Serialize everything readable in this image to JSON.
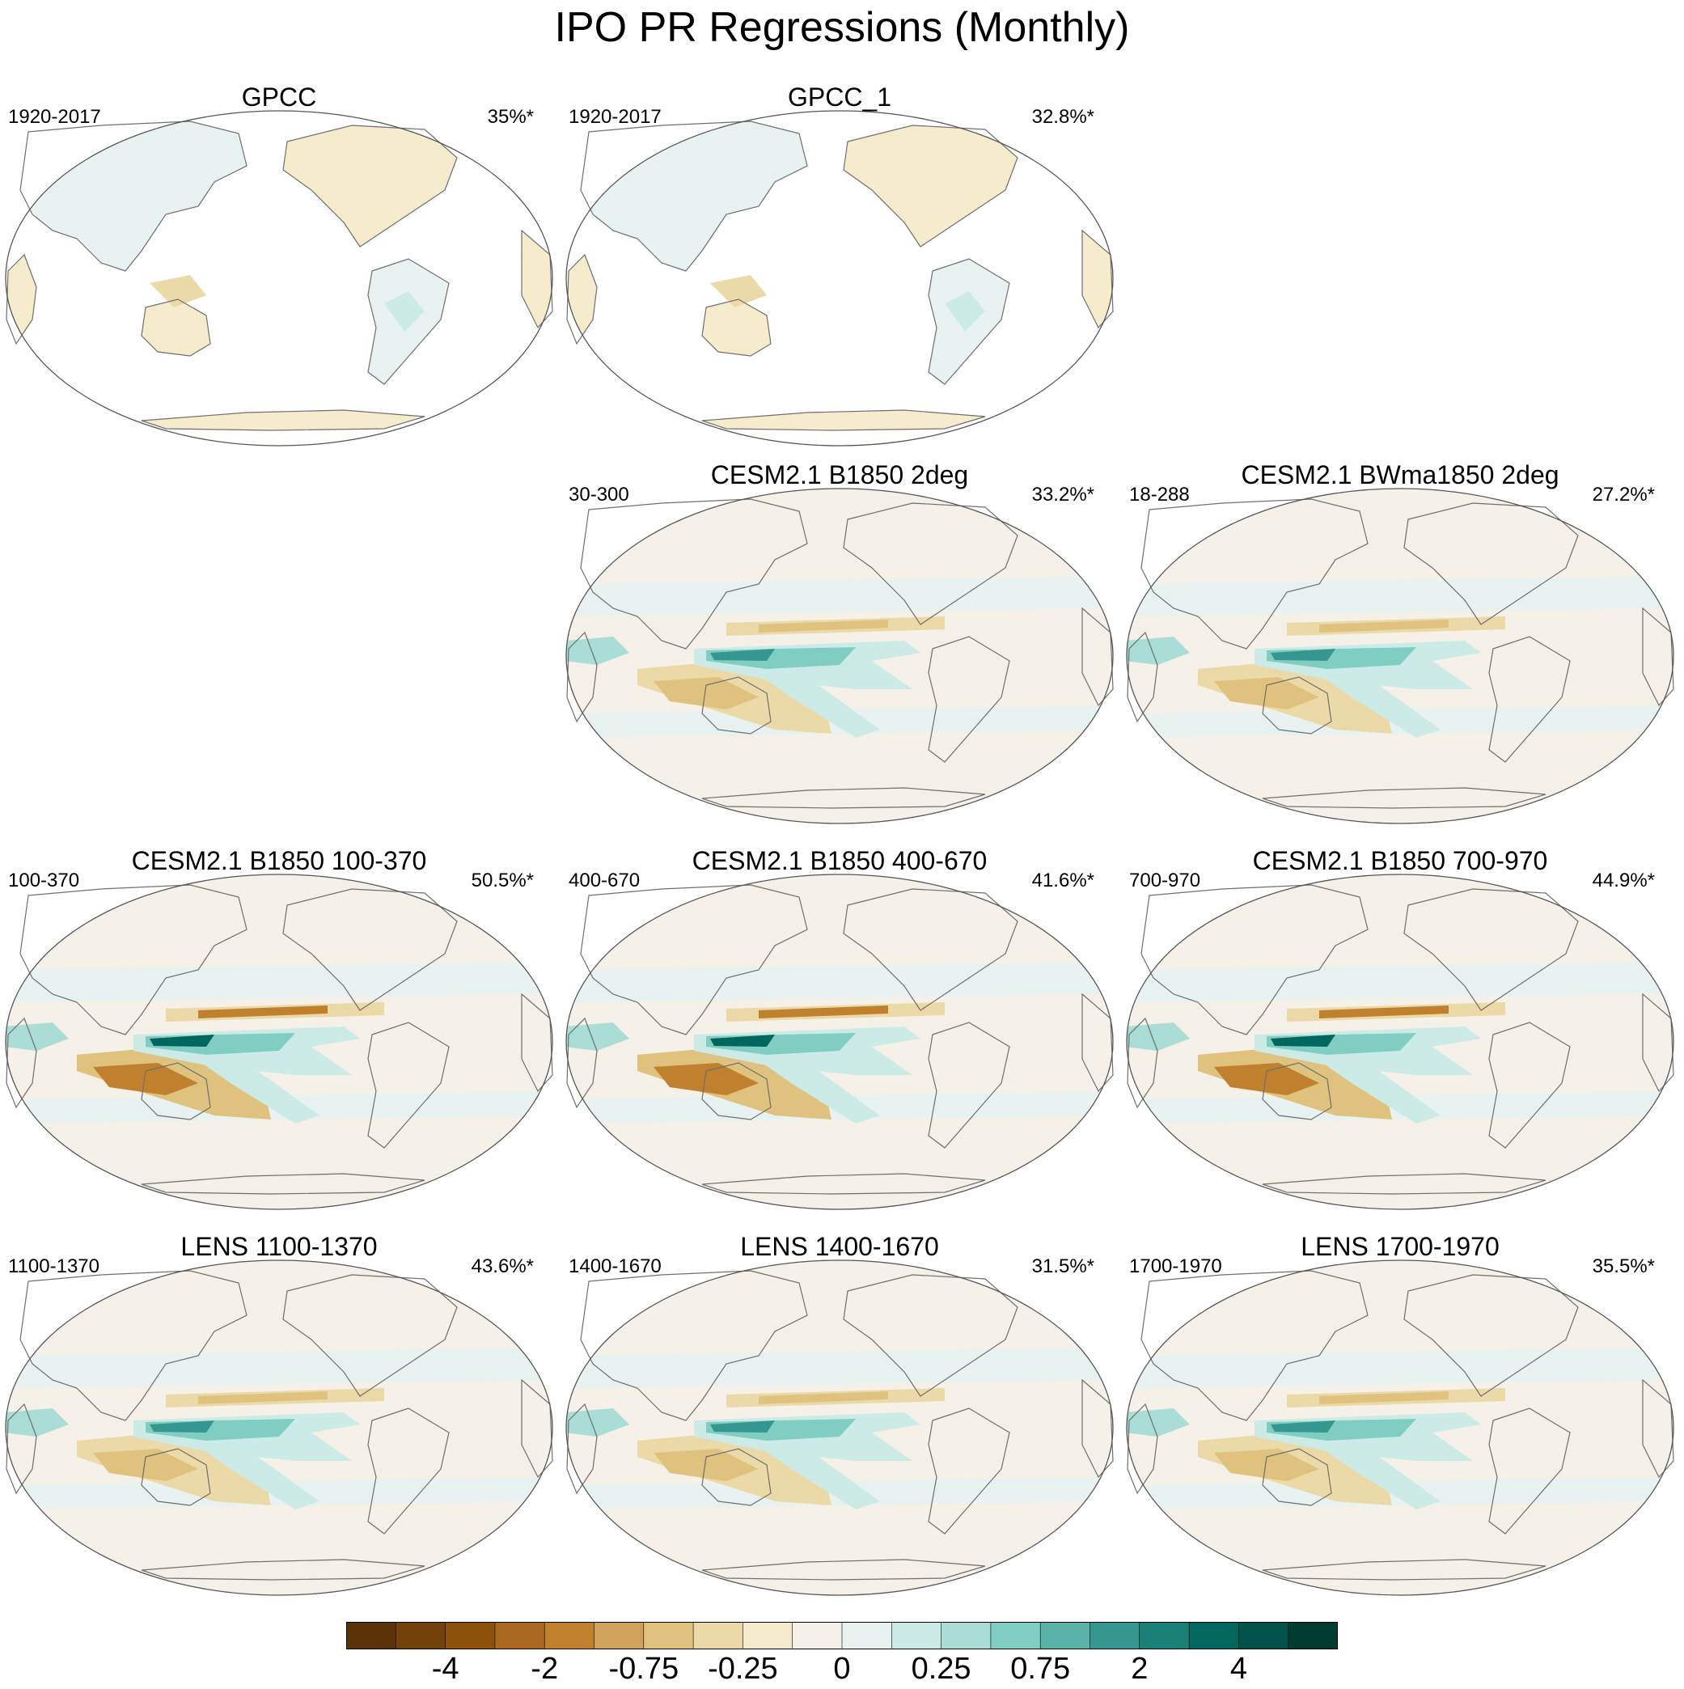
{
  "chart_data": {
    "type": "contour-map-grid",
    "title": "IPO PR Regressions (Monthly)",
    "projection": "robinson-pacific-centered",
    "panels": [
      {
        "id": "gpcc",
        "title": "GPCC",
        "period": "1920-2017",
        "variance": "35%*",
        "kind": "obs",
        "strength": 0.25
      },
      {
        "id": "gpcc-1",
        "title": "GPCC_1",
        "period": "1920-2017",
        "variance": "32.8%*",
        "kind": "obs",
        "strength": 0.3
      },
      {
        "id": "cesm-b1850-2deg",
        "title": "CESM2.1 B1850 2deg",
        "period": "30-300",
        "variance": "33.2%*",
        "kind": "model",
        "strength": 0.8
      },
      {
        "id": "cesm-bwma1850-2deg",
        "title": "CESM2.1 BWma1850 2deg",
        "period": "18-288",
        "variance": "27.2%*",
        "kind": "model",
        "strength": 0.75
      },
      {
        "id": "cesm-b1850-100-370",
        "title": "CESM2.1 B1850 100-370",
        "period": "100-370",
        "variance": "50.5%*",
        "kind": "model",
        "strength": 1.0
      },
      {
        "id": "cesm-b1850-400-670",
        "title": "CESM2.1 B1850 400-670",
        "period": "400-670",
        "variance": "41.6%*",
        "kind": "model",
        "strength": 0.95
      },
      {
        "id": "cesm-b1850-700-970",
        "title": "CESM2.1 B1850 700-970",
        "period": "700-970",
        "variance": "44.9%*",
        "kind": "model",
        "strength": 0.95
      },
      {
        "id": "lens-1100-1370",
        "title": "LENS 1100-1370",
        "period": "1100-1370",
        "variance": "43.6%*",
        "kind": "model",
        "strength": 0.7
      },
      {
        "id": "lens-1400-1670",
        "title": "LENS 1400-1670",
        "period": "1400-1670",
        "variance": "31.5%*",
        "kind": "model",
        "strength": 0.65
      },
      {
        "id": "lens-1700-1970",
        "title": "LENS 1700-1970",
        "period": "1700-1970",
        "variance": "35.5%*",
        "kind": "model",
        "strength": 0.7
      }
    ],
    "colorbar": {
      "colors": [
        "#5a3205",
        "#74410a",
        "#8c510a",
        "#a8681f",
        "#bf812d",
        "#d0a25a",
        "#dfc27d",
        "#ecd9a8",
        "#f5ebcd",
        "#f5f0e8",
        "#e8f3f1",
        "#cdebe6",
        "#a9ddd5",
        "#80cdc1",
        "#5ab4a8",
        "#35978f",
        "#1b8077",
        "#01665e",
        "#015249",
        "#003c30"
      ],
      "tick_labels": [
        "-4",
        "-2",
        "-0.75",
        "-0.25",
        "0",
        "0.25",
        "0.75",
        "2",
        "4"
      ],
      "tick_boundaries": [
        2,
        4,
        6,
        8,
        10,
        12,
        14,
        16,
        18
      ]
    }
  }
}
